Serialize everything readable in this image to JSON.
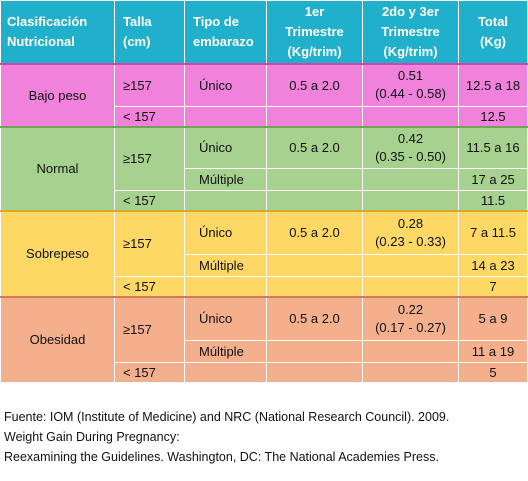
{
  "header": {
    "col1": [
      "Clasificación",
      "Nutricional"
    ],
    "col2": [
      "Talla",
      "(cm)"
    ],
    "col3": [
      "Tipo de",
      "embarazo"
    ],
    "col4": [
      "1er",
      "Trimestre",
      "(Kg/trim)"
    ],
    "col5": [
      "2do y 3er",
      "Trimestre",
      "(Kg/trim)"
    ],
    "col6": [
      "Total",
      "(Kg)"
    ]
  },
  "groups": [
    {
      "name": "Bajo peso",
      "rows": [
        {
          "talla": "≥157",
          "tipo": "Único",
          "t1": "0.5 a 2.0",
          "t2a": "0.51",
          "t2b": "(0.44 - 0.58)",
          "total": "12.5 a 18"
        },
        {
          "talla": "< 157",
          "tipo": "",
          "t1": "",
          "t2a": "",
          "t2b": "",
          "total": "12.5"
        }
      ]
    },
    {
      "name": "Normal",
      "rows": [
        {
          "talla": "≥157",
          "tipo": "Único",
          "t1": "0.5 a 2.0",
          "t2a": "0.42",
          "t2b": "(0.35 - 0.50)",
          "total": "11.5 a 16"
        },
        {
          "talla": "",
          "tipo": "Múltiple",
          "t1": "",
          "t2a": "",
          "t2b": "",
          "total": "17 a 25"
        },
        {
          "talla": "< 157",
          "tipo": "",
          "t1": "",
          "t2a": "",
          "t2b": "",
          "total": "11.5"
        }
      ]
    },
    {
      "name": "Sobrepeso",
      "rows": [
        {
          "talla": "≥157",
          "tipo": "Único",
          "t1": "0.5 a 2.0",
          "t2a": "0.28",
          "t2b": "(0.23 - 0.33)",
          "total": "7 a 11.5"
        },
        {
          "talla": "",
          "tipo": "Múltiple",
          "t1": "",
          "t2a": "",
          "t2b": "",
          "total": "14 a 23"
        },
        {
          "talla": "< 157",
          "tipo": "",
          "t1": "",
          "t2a": "",
          "t2b": "",
          "total": "7"
        }
      ]
    },
    {
      "name": "Obesidad",
      "rows": [
        {
          "talla": "≥157",
          "tipo": "Único",
          "t1": "0.5 a 2.0",
          "t2a": "0.22",
          "t2b": "(0.17 - 0.27)",
          "total": "5 a 9"
        },
        {
          "talla": "",
          "tipo": "Múltiple",
          "t1": "",
          "t2a": "",
          "t2b": "",
          "total": "11 a 19"
        },
        {
          "talla": "< 157",
          "tipo": "",
          "t1": "",
          "t2a": "",
          "t2b": "",
          "total": "5"
        }
      ]
    }
  ],
  "colors": {
    "header": "#20b0cc",
    "bajo_peso": "#f082dc",
    "normal": "#a6d18e",
    "sobrepeso": "#fdd865",
    "obesidad": "#f4b08c"
  },
  "source": [
    "Fuente: IOM (Institute of Medicine) and NRC (National Research Council). 2009.",
    "Weight Gain During Pregnancy:",
    "Reexamining the Guidelines. Washington, DC: The National Academies Press."
  ]
}
